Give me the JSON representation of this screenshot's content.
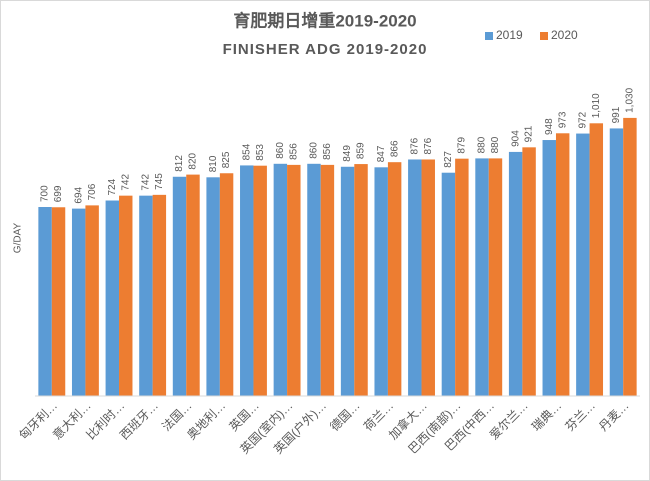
{
  "chart_data": {
    "type": "bar",
    "title": "育肥期日增重2019-2020",
    "subtitle": "FINISHER ADG 2019-2020",
    "y_label": "G/DAY",
    "categories": [
      "匈牙利…",
      "意大利…",
      "比利时…",
      "西班牙…",
      "法国…",
      "奥地利…",
      "英国…",
      "英国(室内)…",
      "英国(户外)…",
      "德国…",
      "荷兰…",
      "加拿大…",
      "巴西(南部)…",
      "巴西(中西…",
      "爱尔兰…",
      "瑞典…",
      "芬兰…",
      "丹麦…"
    ],
    "series": [
      {
        "name": "2019",
        "color": "#5b9bd5",
        "values": [
          700,
          694,
          724,
          742,
          812,
          810,
          854,
          860,
          860,
          849,
          847,
          876,
          827,
          880,
          904,
          948,
          972,
          991
        ]
      },
      {
        "name": "2020",
        "color": "#ed7d31",
        "values": [
          699,
          706,
          742,
          745,
          820,
          825,
          853,
          856,
          856,
          859,
          866,
          876,
          879,
          880,
          921,
          973,
          1010,
          1030
        ],
        "value_labels": [
          "699",
          "706",
          "742",
          "745",
          "820",
          "825",
          "853",
          "856",
          "856",
          "859",
          "866",
          "876",
          "879",
          "880",
          "921",
          "973",
          "1,010",
          "1,030"
        ]
      }
    ],
    "ylim": [
      0,
      1200
    ],
    "legend": "top-right"
  }
}
